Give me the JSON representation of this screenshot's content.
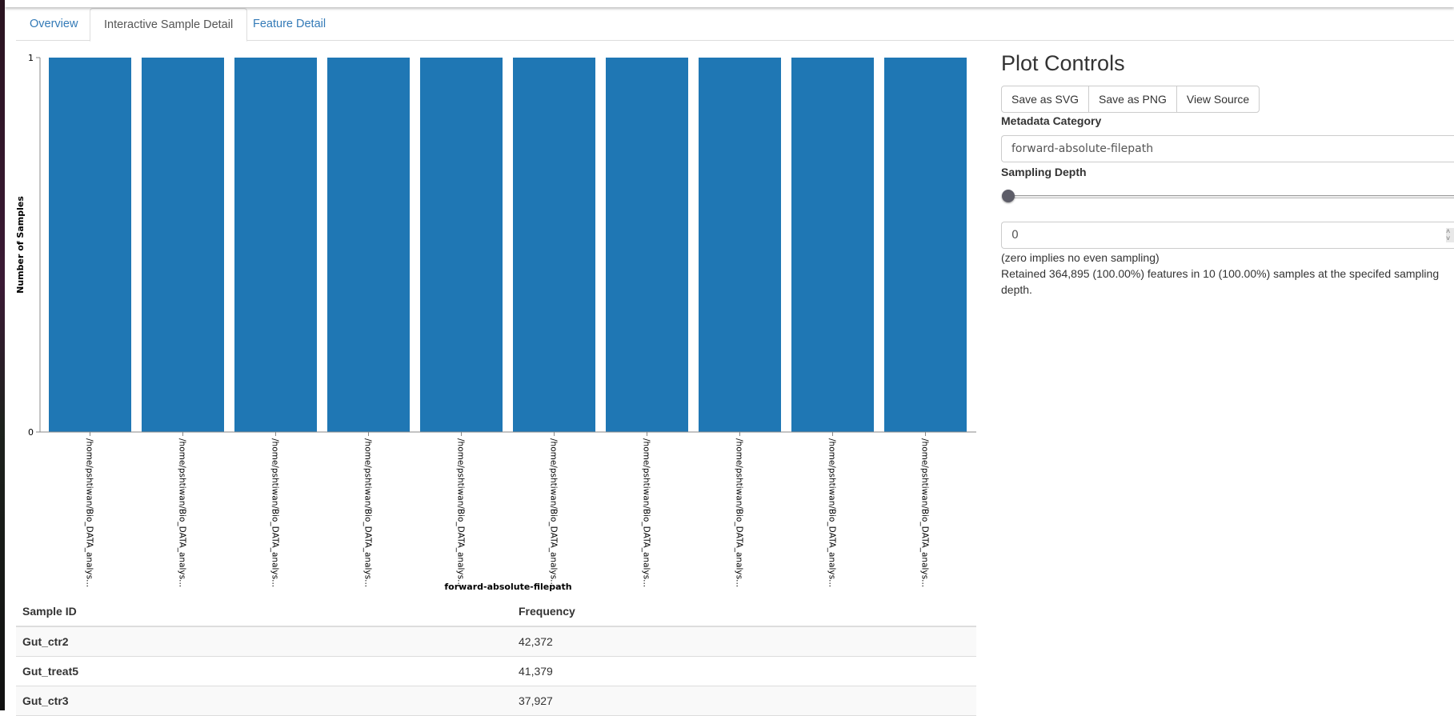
{
  "tabs": [
    {
      "label": "Overview"
    },
    {
      "label": "Interactive Sample Detail"
    },
    {
      "label": "Feature Detail"
    }
  ],
  "colors": {
    "bar": "#1f77b4",
    "link": "#337ab7"
  },
  "chart_data": {
    "type": "bar",
    "title": "",
    "xlabel": "forward-absolute-filepath",
    "ylabel": "Number of Samples",
    "ylim": [
      0,
      1
    ],
    "yticks": [
      "0",
      "1"
    ],
    "categories": [
      "/home/pshtiwan/Bio_DATA_analys...",
      "/home/pshtiwan/Bio_DATA_analys...",
      "/home/pshtiwan/Bio_DATA_analys...",
      "/home/pshtiwan/Bio_DATA_analys...",
      "/home/pshtiwan/Bio_DATA_analys...",
      "/home/pshtiwan/Bio_DATA_analys...",
      "/home/pshtiwan/Bio_DATA_analys...",
      "/home/pshtiwan/Bio_DATA_analys...",
      "/home/pshtiwan/Bio_DATA_analys...",
      "/home/pshtiwan/Bio_DATA_analys..."
    ],
    "values": [
      1,
      1,
      1,
      1,
      1,
      1,
      1,
      1,
      1,
      1
    ]
  },
  "controls": {
    "title": "Plot Controls",
    "buttons": [
      "Save as SVG",
      "Save as PNG",
      "View Source"
    ],
    "metadata_label": "Metadata Category",
    "metadata_value": "forward-absolute-filepath",
    "depth_label": "Sampling Depth",
    "depth_value": "0",
    "slider_fraction": 0,
    "zero_note": "(zero implies no even sampling)",
    "retained_note": "Retained 364,895 (100.00%) features in 10 (100.00%) samples at the specifed sampling depth."
  },
  "table": {
    "headers": [
      "Sample ID",
      "Frequency"
    ],
    "rows": [
      [
        "Gut_ctr2",
        "42,372"
      ],
      [
        "Gut_treat5",
        "41,379"
      ],
      [
        "Gut_ctr3",
        "37,927"
      ]
    ]
  }
}
